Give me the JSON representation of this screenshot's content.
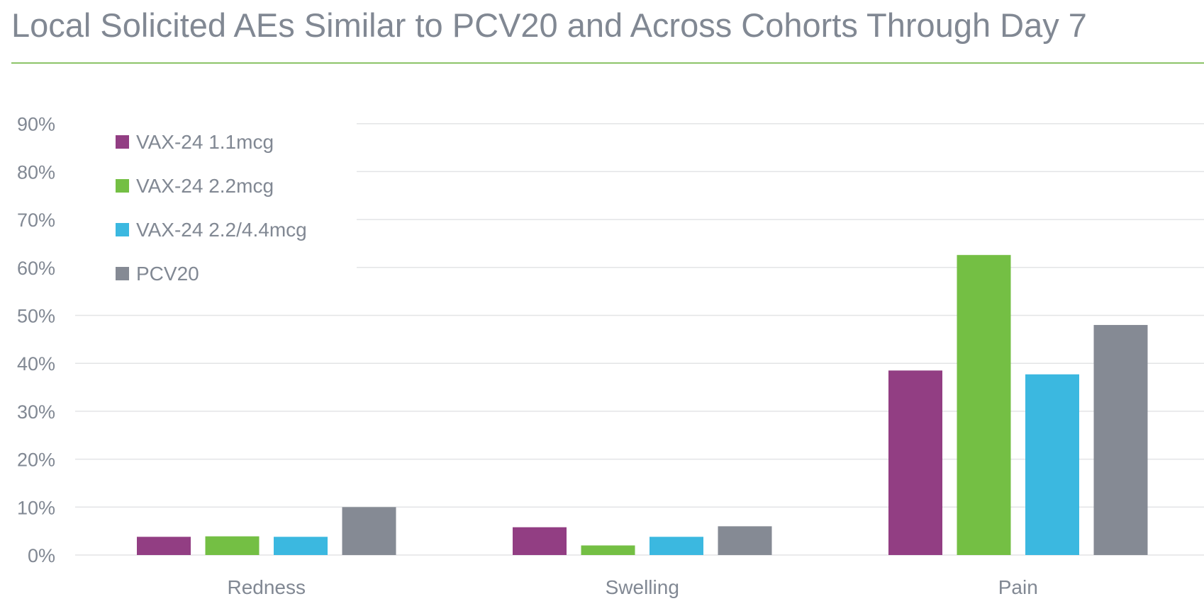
{
  "header": {
    "title": "Local Solicited AEs Similar to PCV20 and Across Cohorts Through Day 7"
  },
  "colors": {
    "title_rule": "#8cc468",
    "gridline": "#e3e4e6",
    "axis_text": "#818893"
  },
  "chart_data": {
    "type": "bar",
    "title": "",
    "xlabel": "",
    "ylabel": "",
    "categories": [
      "Redness",
      "Swelling",
      "Pain"
    ],
    "series": [
      {
        "name": "VAX-24 1.1mcg",
        "color": "#923e83",
        "values": [
          3.8,
          5.8,
          38.5
        ]
      },
      {
        "name": "VAX-24 2.2mcg",
        "color": "#74bf44",
        "values": [
          3.9,
          2.0,
          62.6
        ]
      },
      {
        "name": "VAX-24 2.2/4.4mcg",
        "color": "#3bb8e0",
        "values": [
          3.8,
          3.8,
          37.7
        ]
      },
      {
        "name": "PCV20",
        "color": "#858a94",
        "values": [
          10.0,
          6.0,
          48.0
        ]
      }
    ],
    "ylim": [
      0,
      90
    ],
    "yticks": [
      "0%",
      "10%",
      "20%",
      "30%",
      "40%",
      "50%",
      "60%",
      "70%",
      "80%",
      "90%"
    ],
    "grid": true,
    "legend_position": "top-left"
  }
}
